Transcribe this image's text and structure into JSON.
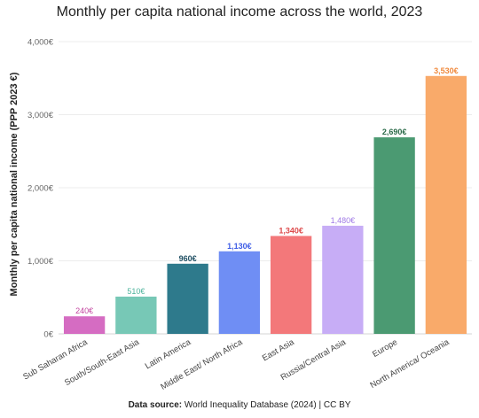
{
  "title": "Monthly per capita national income across the world, 2023",
  "source": {
    "prefix": "Data source:",
    "text": "World Inequality Database (2024) | CC BY"
  },
  "chart_data": {
    "type": "bar",
    "title": "Monthly per capita national income across the world, 2023",
    "xlabel": "",
    "ylabel": "Monthly per capita national income (PPP 2023 €)",
    "ylim": [
      0,
      4000
    ],
    "yticks": [
      0,
      1000,
      2000,
      3000,
      4000
    ],
    "ytick_labels": [
      "0€",
      "1,000€",
      "2,000€",
      "3,000€",
      "4,000€"
    ],
    "grid": true,
    "legend": "none",
    "categories": [
      "Sub Saharan Africa",
      "South/South-East Asia",
      "Latin America",
      "Middle East/ North Africa",
      "East Asia",
      "Russia/Central Asia",
      "Europe",
      "North America/ Oceania"
    ],
    "values": [
      240,
      510,
      960,
      1130,
      1340,
      1480,
      2690,
      3530
    ],
    "value_labels": [
      "240€",
      "510€",
      "960€",
      "1,130€",
      "1,340€",
      "1,480€",
      "2,690€",
      "3,530€"
    ],
    "colors": [
      "#d56cc2",
      "#77c8b6",
      "#2e7a8c",
      "#6f8ef4",
      "#f3787a",
      "#c7adf6",
      "#4b9a72",
      "#f9aa6a"
    ],
    "label_colors": [
      "#c2429e",
      "#4db39c",
      "#1f4f63",
      "#3e5de6",
      "#dd4a4b",
      "#a07ae6",
      "#2b6b49",
      "#f08a3e"
    ]
  }
}
